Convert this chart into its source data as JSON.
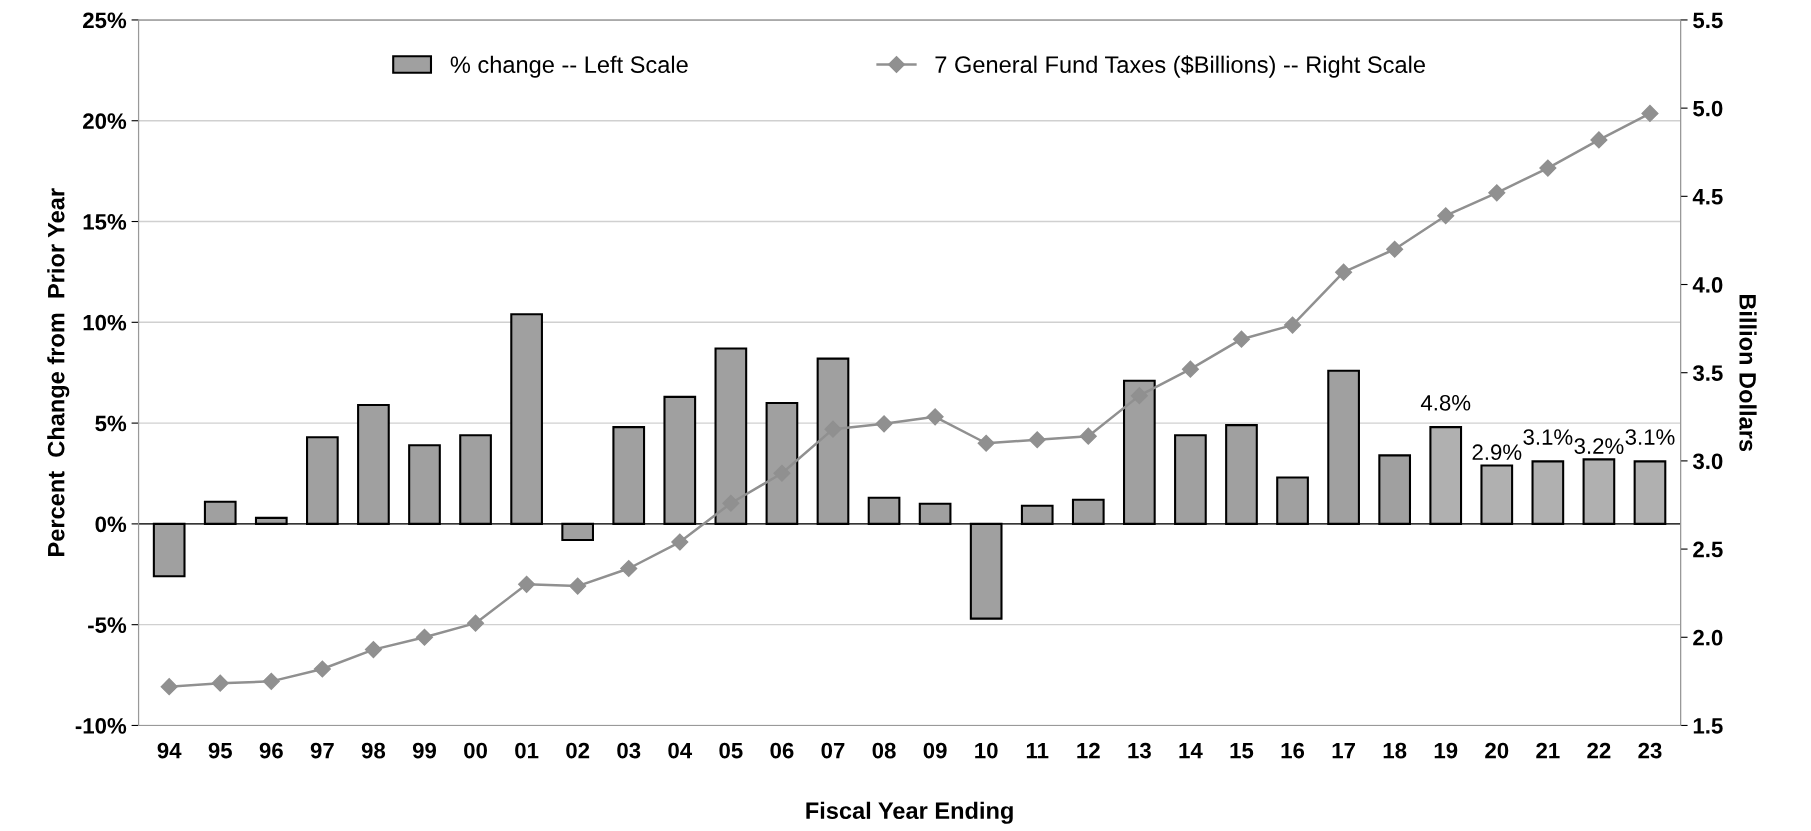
{
  "chart_data": {
    "type": "bar",
    "xlabel": "Fiscal Year Ending",
    "ylabel": "Percent  Change from  Prior Year",
    "y2label": "Billion Dollars",
    "categories": [
      "94",
      "95",
      "96",
      "97",
      "98",
      "99",
      "00",
      "01",
      "02",
      "03",
      "04",
      "05",
      "06",
      "07",
      "08",
      "09",
      "10",
      "11",
      "12",
      "13",
      "14",
      "15",
      "16",
      "17",
      "18",
      "19",
      "20",
      "21",
      "22",
      "23"
    ],
    "series": [
      {
        "name": "% change -- Left Scale",
        "color": "#a0a0a0",
        "values": [
          -2.6,
          1.1,
          0.3,
          4.3,
          5.9,
          3.9,
          4.4,
          10.4,
          -0.8,
          4.8,
          6.3,
          8.7,
          6.0,
          8.2,
          1.3,
          1.0,
          -4.7,
          0.9,
          1.2,
          7.1,
          4.4,
          4.9,
          2.3,
          7.6,
          3.4,
          null,
          null,
          null,
          null,
          null
        ]
      },
      {
        "color": "#b0b0b0",
        "values": [
          null,
          null,
          null,
          null,
          null,
          null,
          null,
          null,
          null,
          null,
          null,
          null,
          null,
          null,
          null,
          null,
          null,
          null,
          null,
          null,
          null,
          null,
          null,
          null,
          null,
          4.8,
          2.9,
          3.1,
          3.2,
          3.1
        ],
        "value_labels": [
          null,
          null,
          null,
          null,
          null,
          null,
          null,
          null,
          null,
          null,
          null,
          null,
          null,
          null,
          null,
          null,
          null,
          null,
          null,
          null,
          null,
          null,
          null,
          null,
          null,
          "4.8%",
          "2.9%",
          "3.1%",
          "3.2%",
          "3.1%"
        ]
      },
      {
        "name": "7 General Fund Taxes ($Billions) -- Right Scale",
        "type": "line",
        "axis": "y2",
        "color": "#909090",
        "marker": "diamond",
        "values": [
          1.72,
          1.74,
          1.75,
          1.82,
          1.93,
          2.0,
          2.08,
          2.3,
          2.29,
          2.39,
          2.54,
          2.76,
          2.93,
          3.18,
          3.21,
          3.25,
          3.1,
          3.12,
          3.14,
          3.37,
          3.52,
          3.69,
          3.77,
          4.07,
          4.2,
          4.39,
          4.52,
          4.66,
          4.82,
          4.97
        ]
      }
    ],
    "ylim": [
      -10,
      25
    ],
    "yticks": [
      {
        "value": -10,
        "label": "-10%"
      },
      {
        "value": -5,
        "label": "-5%"
      },
      {
        "value": 0,
        "label": "0%"
      },
      {
        "value": 5,
        "label": "5%"
      },
      {
        "value": 10,
        "label": "10%"
      },
      {
        "value": 15,
        "label": "15%"
      },
      {
        "value": 20,
        "label": "20%"
      },
      {
        "value": 25,
        "label": "25%"
      }
    ],
    "y2lim": [
      1.5,
      5.5
    ],
    "y2ticks": [
      {
        "value": 1.5,
        "label": "1.5"
      },
      {
        "value": 2.0,
        "label": "2.0"
      },
      {
        "value": 2.5,
        "label": "2.5"
      },
      {
        "value": 3.0,
        "label": "3.0"
      },
      {
        "value": 3.5,
        "label": "3.5"
      },
      {
        "value": 4.0,
        "label": "4.0"
      },
      {
        "value": 4.5,
        "label": "4.5"
      },
      {
        "value": 5.0,
        "label": "5.0"
      },
      {
        "value": 5.5,
        "label": "5.5"
      }
    ],
    "grid": "y",
    "legend": "top"
  }
}
